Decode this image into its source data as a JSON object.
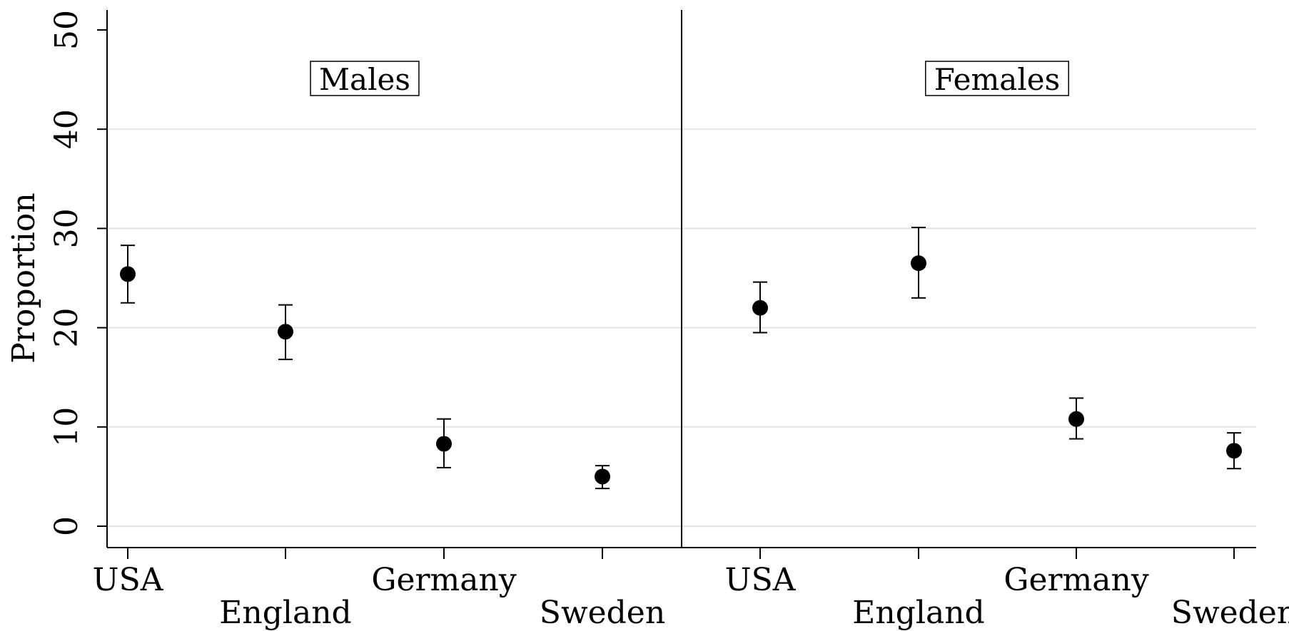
{
  "chart_data": {
    "type": "scatter",
    "ylabel": "Proportion",
    "xlabel": "",
    "ylim": [
      0,
      50
    ],
    "yticks": [
      0,
      10,
      20,
      30,
      40,
      50
    ],
    "grid": true,
    "marker": "filled-circle-with-error-bars",
    "color": "#000000",
    "categories": [
      "USA",
      "England",
      "Germany",
      "Sweden"
    ],
    "panels": [
      {
        "label": "Males",
        "points": [
          {
            "category": "USA",
            "value": 25.4,
            "lower": 22.5,
            "upper": 28.3
          },
          {
            "category": "England",
            "value": 19.6,
            "lower": 16.8,
            "upper": 22.3
          },
          {
            "category": "Germany",
            "value": 8.3,
            "lower": 5.9,
            "upper": 10.8
          },
          {
            "category": "Sweden",
            "value": 5.0,
            "lower": 3.8,
            "upper": 6.1
          }
        ]
      },
      {
        "label": "Females",
        "points": [
          {
            "category": "USA",
            "value": 22.0,
            "lower": 19.5,
            "upper": 24.6
          },
          {
            "category": "England",
            "value": 26.5,
            "lower": 23.0,
            "upper": 30.1
          },
          {
            "category": "Germany",
            "value": 10.8,
            "lower": 8.8,
            "upper": 12.9
          },
          {
            "category": "Sweden",
            "value": 7.6,
            "lower": 5.8,
            "upper": 9.4
          }
        ]
      }
    ]
  }
}
